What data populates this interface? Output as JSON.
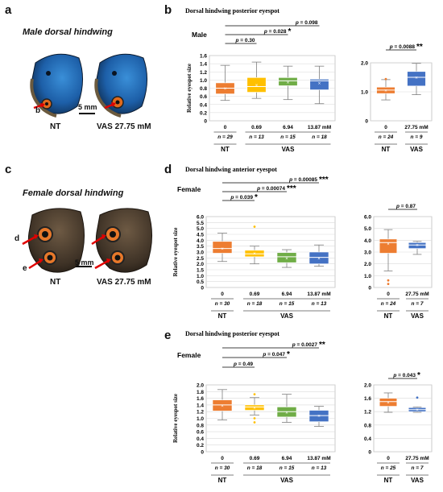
{
  "panels": {
    "a": {
      "label": "a",
      "title": "Male dorsal hindwing",
      "marker": "b",
      "scale": "5 mm",
      "left": "NT",
      "right": "VAS 27.75 mM"
    },
    "c": {
      "label": "c",
      "title": "Female dorsal hindwing",
      "marker1": "d",
      "marker2": "e",
      "scale": "5 mm",
      "left": "NT",
      "right": "VAS 27.75 mM"
    }
  },
  "colors": {
    "c0": "#ed7d31",
    "c1": "#ffc000",
    "c2": "#70ad47",
    "c3": "#4472c4",
    "grid": "#d9d9d9"
  },
  "chart_data": [
    {
      "panel": "b",
      "type": "box",
      "title": "Dorsal hindwing posterior eyespot",
      "sex": "Male",
      "ylabel": "Relative eyespot size",
      "left": {
        "ylim": [
          0,
          1.6
        ],
        "ticks": [
          0,
          0.2,
          0.4,
          0.6,
          0.8,
          1.0,
          1.2,
          1.4,
          1.6
        ],
        "tick_labels": [
          "0",
          "0.2",
          "0.4",
          "0.6",
          "0.8",
          "1.0",
          "1.2",
          "1.4",
          "1.6"
        ],
        "categories": [
          "0",
          "0.69",
          "6.94",
          "13.87 mM"
        ],
        "n": [
          "n = 29",
          "n = 13",
          "n = 15",
          "n = 18"
        ],
        "boxes": [
          {
            "min": 0.5,
            "q1": 0.66,
            "median": 0.8,
            "q3": 0.93,
            "max": 1.36,
            "mean": 0.8,
            "outliers": []
          },
          {
            "min": 0.55,
            "q1": 0.7,
            "median": 0.84,
            "q3": 1.06,
            "max": 1.44,
            "mean": 0.88,
            "outliers": []
          },
          {
            "min": 0.52,
            "q1": 0.86,
            "median": 0.98,
            "q3": 1.06,
            "max": 1.34,
            "mean": 0.95,
            "outliers": []
          },
          {
            "min": 0.42,
            "q1": 0.76,
            "median": 0.98,
            "q3": 1.02,
            "max": 1.34,
            "mean": 0.93,
            "outliers": []
          }
        ],
        "brackets": [
          {
            "text": "p = 0.30",
            "stars": "",
            "from": 0,
            "to": 1
          },
          {
            "text": "p = 0.028",
            "stars": "*",
            "from": 0,
            "to": 2
          },
          {
            "text": "p = 0.098",
            "stars": "",
            "from": 0,
            "to": 3
          }
        ],
        "groups": [
          "NT",
          "VAS"
        ]
      },
      "right": {
        "ylim": [
          0,
          2.0
        ],
        "ticks": [
          0,
          1.0,
          2.0
        ],
        "tick_labels": [
          "0",
          "1.0",
          "2.0"
        ],
        "categories": [
          "0",
          "27.75 mM"
        ],
        "n": [
          "n = 24",
          "n = 9"
        ],
        "boxes": [
          {
            "min": 0.72,
            "q1": 0.94,
            "median": 1.06,
            "q3": 1.16,
            "max": 1.42,
            "mean": 1.05,
            "outliers": [
              1.44
            ]
          },
          {
            "min": 0.9,
            "q1": 1.2,
            "median": 1.5,
            "q3": 1.7,
            "max": 1.98,
            "mean": 1.5,
            "outliers": []
          }
        ],
        "brackets": [
          {
            "text": "p = 0.0088",
            "stars": "**",
            "from": 0,
            "to": 1
          }
        ],
        "groups": [
          "NT",
          "VAS"
        ]
      }
    },
    {
      "panel": "d",
      "type": "box",
      "title": "Dorsal hindwing anterior eyespot",
      "sex": "Female",
      "ylabel": "Relative eyespot size",
      "left": {
        "ylim": [
          0,
          6.0
        ],
        "ticks": [
          0,
          0.5,
          1,
          1.5,
          2,
          2.5,
          3,
          3.5,
          4,
          4.5,
          5,
          5.5,
          6
        ],
        "tick_labels": [
          "0",
          "0.5",
          "1.0",
          "1.5",
          "2.0",
          "2.5",
          "3.0",
          "3.5",
          "4.0",
          "4.5",
          "5.0",
          "5.5",
          "6.0"
        ],
        "categories": [
          "0",
          "0.69",
          "6.94",
          "13.87 mM"
        ],
        "n": [
          "n = 30",
          "n = 18",
          "n = 15",
          "n = 13"
        ],
        "boxes": [
          {
            "min": 2.2,
            "q1": 2.9,
            "median": 3.3,
            "q3": 3.9,
            "max": 4.6,
            "mean": 3.3,
            "outliers": []
          },
          {
            "min": 2.0,
            "q1": 2.6,
            "median": 2.85,
            "q3": 3.15,
            "max": 3.5,
            "mean": 2.9,
            "outliers": [
              5.15
            ]
          },
          {
            "min": 1.7,
            "q1": 2.1,
            "median": 2.6,
            "q3": 2.95,
            "max": 3.2,
            "mean": 2.5,
            "outliers": []
          },
          {
            "min": 1.8,
            "q1": 2.0,
            "median": 2.55,
            "q3": 3.0,
            "max": 3.6,
            "mean": 2.5,
            "outliers": []
          }
        ],
        "brackets": [
          {
            "text": "p = 0.039",
            "stars": "*",
            "from": 0,
            "to": 1
          },
          {
            "text": "p = 0.00074",
            "stars": "***",
            "from": 0,
            "to": 2
          },
          {
            "text": "p = 0.00085",
            "stars": "***",
            "from": 0,
            "to": 3
          }
        ],
        "groups": [
          "NT",
          "VAS"
        ]
      },
      "right": {
        "ylim": [
          0,
          6.0
        ],
        "ticks": [
          0,
          1,
          2,
          3,
          4,
          5,
          6
        ],
        "tick_labels": [
          "0",
          "1.0",
          "2.0",
          "3.0",
          "4.0",
          "5.0",
          "6.0"
        ],
        "categories": [
          "0",
          "27.75 mM"
        ],
        "n": [
          "n = 24",
          "n = 7"
        ],
        "boxes": [
          {
            "min": 1.4,
            "q1": 2.9,
            "median": 3.8,
            "q3": 4.1,
            "max": 4.9,
            "mean": 3.7,
            "outliers": [
              0.6,
              0.3
            ]
          },
          {
            "min": 2.8,
            "q1": 3.3,
            "median": 3.6,
            "q3": 3.8,
            "max": 3.9,
            "mean": 3.6,
            "outliers": []
          }
        ],
        "brackets": [
          {
            "text": "p = 0.87",
            "stars": "",
            "from": 0,
            "to": 1
          }
        ],
        "groups": [
          "NT",
          "VAS"
        ]
      }
    },
    {
      "panel": "e",
      "type": "box",
      "title": "Dorsal hindwing posterior eyespot",
      "sex": "Female",
      "ylabel": "Relative eyespot size",
      "left": {
        "ylim": [
          0,
          2.0
        ],
        "ticks": [
          0,
          0.2,
          0.4,
          0.6,
          0.8,
          1.0,
          1.2,
          1.4,
          1.6,
          1.8,
          2.0
        ],
        "tick_labels": [
          "0",
          "0.2",
          "0.4",
          "0.6",
          "0.8",
          "1.0",
          "1.2",
          "1.4",
          "1.6",
          "1.8",
          "2.0"
        ],
        "categories": [
          "0",
          "0.69",
          "6.94",
          "13.87 mM"
        ],
        "n": [
          "n = 30",
          "n = 18",
          "n = 15",
          "n = 13"
        ],
        "boxes": [
          {
            "min": 0.95,
            "q1": 1.22,
            "median": 1.4,
            "q3": 1.55,
            "max": 1.86,
            "mean": 1.38,
            "outliers": []
          },
          {
            "min": 1.1,
            "q1": 1.24,
            "median": 1.34,
            "q3": 1.4,
            "max": 1.62,
            "mean": 1.32,
            "outliers": [
              1.72,
              1.0,
              0.88
            ]
          },
          {
            "min": 0.88,
            "q1": 1.04,
            "median": 1.2,
            "q3": 1.34,
            "max": 1.72,
            "mean": 1.18,
            "outliers": []
          },
          {
            "min": 0.76,
            "q1": 0.9,
            "median": 1.08,
            "q3": 1.24,
            "max": 1.36,
            "mean": 1.08,
            "outliers": []
          }
        ],
        "brackets": [
          {
            "text": "p = 0.49",
            "stars": "",
            "from": 0,
            "to": 1
          },
          {
            "text": "p = 0.047",
            "stars": "*",
            "from": 0,
            "to": 2
          },
          {
            "text": "p = 0.0027",
            "stars": "**",
            "from": 0,
            "to": 3
          }
        ],
        "groups": [
          "NT",
          "VAS"
        ]
      },
      "right": {
        "ylim": [
          0,
          2.0
        ],
        "ticks": [
          0,
          0.4,
          0.8,
          1.2,
          1.6,
          2.0
        ],
        "tick_labels": [
          "0",
          "0.4",
          "0.8",
          "1.2",
          "1.6",
          "2.0"
        ],
        "categories": [
          "0",
          "27.75 mM"
        ],
        "n": [
          "n = 25",
          "n = 7"
        ],
        "boxes": [
          {
            "min": 1.18,
            "q1": 1.36,
            "median": 1.5,
            "q3": 1.6,
            "max": 1.76,
            "mean": 1.48,
            "outliers": []
          },
          {
            "min": 1.18,
            "q1": 1.2,
            "median": 1.26,
            "q3": 1.32,
            "max": 1.34,
            "mean": 1.26,
            "outliers": [
              1.62
            ]
          }
        ],
        "brackets": [
          {
            "text": "p = 0.043",
            "stars": "*",
            "from": 0,
            "to": 1
          }
        ],
        "groups": [
          "NT",
          "VAS"
        ]
      }
    }
  ]
}
